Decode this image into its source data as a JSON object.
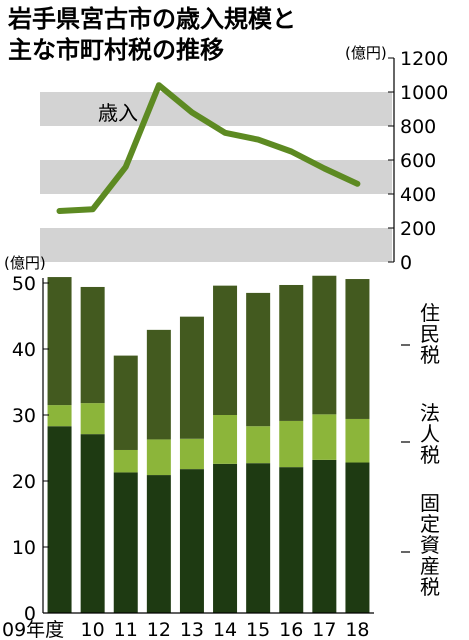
{
  "title_lines": [
    "岩手県宮古市の歳入規模と",
    "主な市町村税の推移"
  ],
  "units": {
    "top": "(億円)",
    "bottom": "(億円)"
  },
  "colors": {
    "revenue_line": "#5d8a22",
    "band": "#d3d3d3",
    "固定資産税": "#1e3a12",
    "法人税": "#8cb53a",
    "住民税": "#435a1f"
  },
  "chart_data": [
    {
      "type": "line",
      "series": [
        {
          "name": "歳入",
          "values": [
            300,
            310,
            560,
            1040,
            880,
            760,
            720,
            650,
            550,
            460
          ]
        }
      ],
      "categories": [
        "09年度",
        "10",
        "11",
        "12",
        "13",
        "14",
        "15",
        "16",
        "17",
        "18"
      ],
      "ylim": [
        0,
        1200
      ],
      "yticks": [
        0,
        200,
        400,
        600,
        800,
        1000,
        1200
      ],
      "ylabel": "(億円)"
    },
    {
      "type": "bar",
      "stacked": true,
      "categories": [
        "09年度",
        "10",
        "11",
        "12",
        "13",
        "14",
        "15",
        "16",
        "17",
        "18"
      ],
      "series": [
        {
          "name": "固定資産税",
          "values": [
            28.3,
            27.1,
            21.3,
            20.9,
            21.8,
            22.6,
            22.7,
            22.1,
            23.2,
            22.8
          ]
        },
        {
          "name": "法人税",
          "values": [
            3.2,
            4.7,
            3.4,
            5.4,
            4.6,
            7.4,
            5.6,
            7.0,
            6.9,
            6.6
          ]
        },
        {
          "name": "住民税",
          "values": [
            19.4,
            17.6,
            14.3,
            16.6,
            18.5,
            19.6,
            20.2,
            20.6,
            21.0,
            21.2
          ]
        }
      ],
      "ylim": [
        0,
        50
      ],
      "yticks": [
        0,
        10,
        20,
        30,
        40,
        50
      ],
      "ylabel": "(億円)",
      "side_labels": [
        "住民税",
        "法人税",
        "固定資産税"
      ]
    }
  ]
}
